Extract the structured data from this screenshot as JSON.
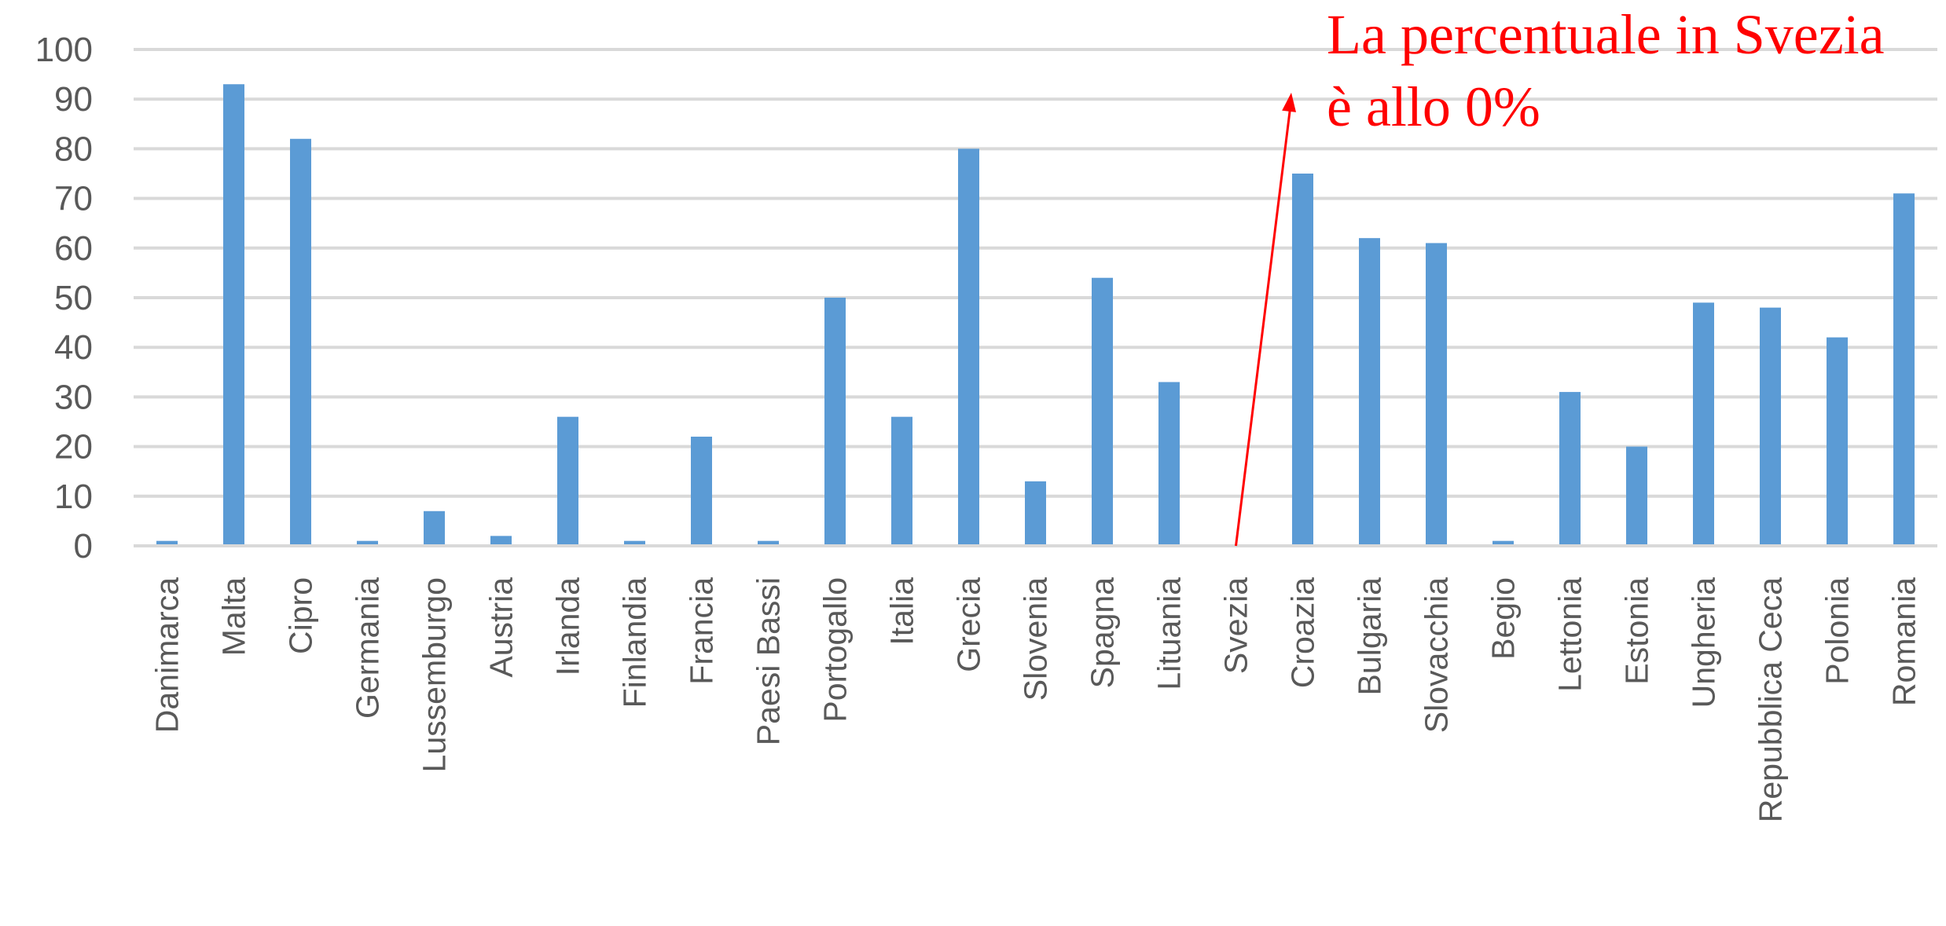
{
  "chart_data": {
    "type": "bar",
    "title": "",
    "xlabel": "",
    "ylabel": "",
    "ylim": [
      0,
      100
    ],
    "yticks": [
      0,
      10,
      20,
      30,
      40,
      50,
      60,
      70,
      80,
      90,
      100
    ],
    "grid": true,
    "legend": "none",
    "bar_color": "#5b9bd5",
    "categories": [
      "Danimarca",
      "Malta",
      "Cipro",
      "Germania",
      "Lussemburgo",
      "Austria",
      "Irlanda",
      "Finlandia",
      "Francia",
      "Paesi Bassi",
      "Portogallo",
      "Italia",
      "Grecia",
      "Slovenia",
      "Spagna",
      "Lituania",
      "Svezia",
      "Croazia",
      "Bulgaria",
      "Slovacchia",
      "Begio",
      "Lettonia",
      "Estonia",
      "Ungheria",
      "Repubblica Ceca",
      "Polonia",
      "Romania"
    ],
    "values": [
      1,
      93,
      82,
      1,
      7,
      2,
      26,
      1,
      22,
      1,
      50,
      26,
      80,
      13,
      54,
      33,
      0,
      75,
      62,
      61,
      1,
      31,
      20,
      49,
      48,
      42,
      71
    ],
    "annotations": [
      {
        "lines": [
          "La percentuale in Svezia",
          "è allo 0%"
        ],
        "color": "#ff0000",
        "points_to": "Svezia"
      }
    ]
  }
}
